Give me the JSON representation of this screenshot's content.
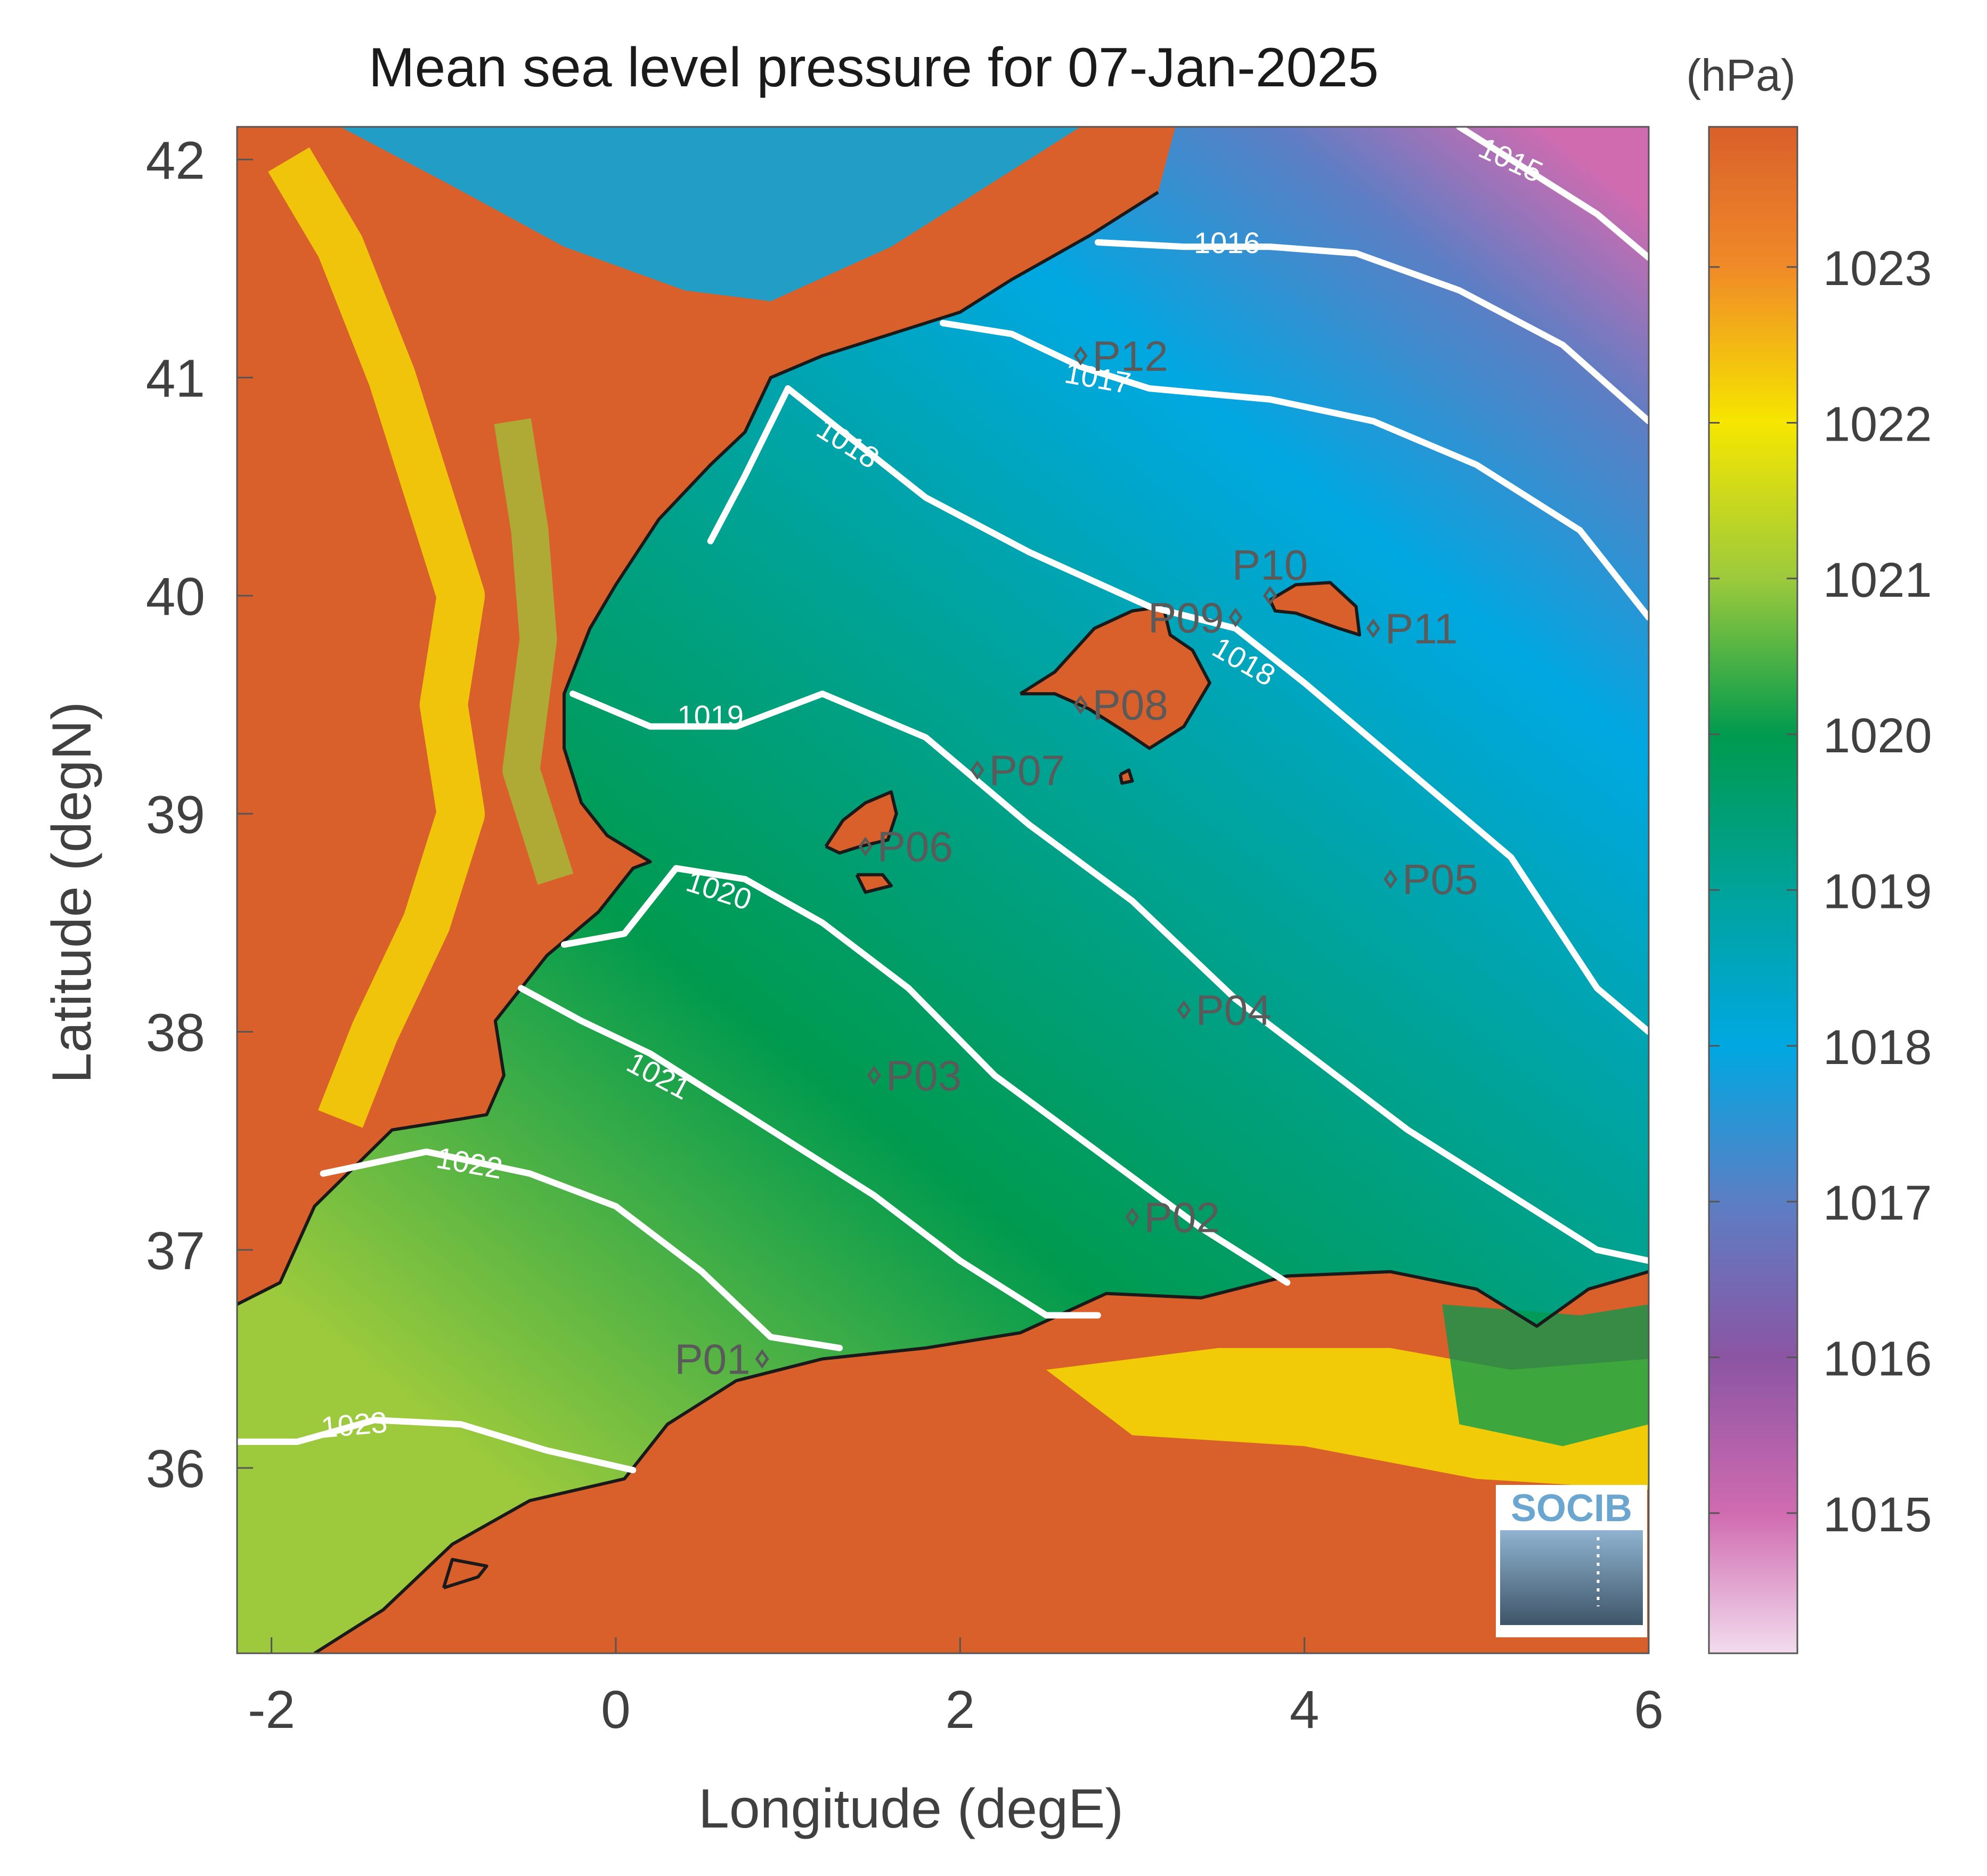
{
  "title": "Mean sea level pressure for 07-Jan-2025",
  "colorbar_unit": "(hPa)",
  "logo_text": "SOCIB",
  "chart_data": {
    "type": "heatmap",
    "title": "Mean sea level pressure for 07-Jan-2025",
    "xlabel": "Longitude (degE)",
    "ylabel": "Latitude (degN)",
    "xlim": [
      -2.2,
      6.0
    ],
    "ylim": [
      35.15,
      42.15
    ],
    "xticks": [
      -2,
      0,
      2,
      4,
      6
    ],
    "xtick_labels": [
      "-2",
      "0",
      "2",
      "4",
      "6"
    ],
    "yticks": [
      36,
      37,
      38,
      39,
      40,
      41,
      42
    ],
    "ytick_labels": [
      "36",
      "37",
      "38",
      "39",
      "40",
      "41",
      "42"
    ],
    "colorbar": {
      "label": "(hPa)",
      "range": [
        1014.1,
        1023.9
      ],
      "ticks": [
        1015,
        1016,
        1017,
        1018,
        1019,
        1020,
        1021,
        1022,
        1023
      ],
      "tick_labels": [
        "1015",
        "1016",
        "1017",
        "1018",
        "1019",
        "1020",
        "1021",
        "1022",
        "1023"
      ],
      "colors": [
        {
          "value": 1014.1,
          "color": "#f2dcee"
        },
        {
          "value": 1015.0,
          "color": "#d06bb0"
        },
        {
          "value": 1016.0,
          "color": "#8b55a3"
        },
        {
          "value": 1017.0,
          "color": "#5c7ec4"
        },
        {
          "value": 1018.0,
          "color": "#00a8e2"
        },
        {
          "value": 1019.0,
          "color": "#00a39a"
        },
        {
          "value": 1020.0,
          "color": "#009a4e"
        },
        {
          "value": 1021.0,
          "color": "#9cca3c"
        },
        {
          "value": 1022.0,
          "color": "#f6e600"
        },
        {
          "value": 1023.0,
          "color": "#f08a28"
        },
        {
          "value": 1023.9,
          "color": "#d9602a"
        }
      ]
    },
    "contours": [
      {
        "level": 1015,
        "label": "1015",
        "points": [
          [
            4.9,
            42.15
          ],
          [
            5.3,
            41.95
          ],
          [
            5.7,
            41.75
          ],
          [
            6.0,
            41.55
          ]
        ],
        "label_at": [
          5.2,
          42.0
        ],
        "label_angle": 25
      },
      {
        "level": 1016,
        "label": "1016",
        "points": [
          [
            2.8,
            41.62
          ],
          [
            3.3,
            41.6
          ],
          [
            3.8,
            41.6
          ],
          [
            4.3,
            41.57
          ],
          [
            4.9,
            41.4
          ],
          [
            5.5,
            41.15
          ],
          [
            6.0,
            40.8
          ]
        ],
        "label_at": [
          3.55,
          41.62
        ],
        "label_angle": 0
      },
      {
        "level": 1017,
        "label": "1017",
        "points": [
          [
            1.9,
            41.25
          ],
          [
            2.3,
            41.2
          ],
          [
            2.7,
            41.05
          ],
          [
            3.1,
            40.95
          ],
          [
            3.8,
            40.9
          ],
          [
            4.4,
            40.8
          ],
          [
            5.0,
            40.6
          ],
          [
            5.6,
            40.3
          ],
          [
            6.0,
            39.9
          ]
        ],
        "label_at": [
          2.8,
          41.0
        ],
        "label_angle": 10
      },
      {
        "level": 1018,
        "label": "1018",
        "points": [
          [
            1.0,
            40.95
          ],
          [
            1.4,
            40.7
          ],
          [
            1.8,
            40.45
          ],
          [
            2.4,
            40.2
          ],
          [
            3.1,
            39.95
          ],
          [
            3.6,
            39.85
          ],
          [
            4.0,
            39.6
          ],
          [
            4.6,
            39.2
          ],
          [
            5.2,
            38.8
          ],
          [
            5.7,
            38.2
          ],
          [
            6.0,
            38.0
          ]
        ],
        "label_at": [
          3.65,
          39.7
        ],
        "label_angle": 30
      },
      {
        "level": 1018,
        "label": "1018",
        "points": [
          [
            0.55,
            40.25
          ],
          [
            0.75,
            40.55
          ],
          [
            1.0,
            40.95
          ]
        ],
        "label_at": [
          1.35,
          40.7
        ],
        "label_angle": 32
      },
      {
        "level": 1019,
        "label": "1019",
        "points": [
          [
            -0.25,
            39.55
          ],
          [
            0.2,
            39.4
          ],
          [
            0.7,
            39.4
          ],
          [
            1.2,
            39.55
          ],
          [
            1.8,
            39.35
          ],
          [
            2.4,
            38.95
          ],
          [
            3.0,
            38.6
          ],
          [
            3.6,
            38.15
          ],
          [
            4.1,
            37.85
          ],
          [
            4.6,
            37.55
          ],
          [
            5.2,
            37.25
          ],
          [
            5.7,
            37.0
          ],
          [
            6.0,
            36.95
          ]
        ],
        "label_at": [
          0.55,
          39.45
        ],
        "label_angle": 0
      },
      {
        "level": 1020,
        "label": "1020",
        "points": [
          [
            -0.3,
            38.4
          ],
          [
            0.05,
            38.45
          ],
          [
            0.35,
            38.75
          ],
          [
            0.75,
            38.7
          ],
          [
            1.2,
            38.5
          ],
          [
            1.7,
            38.2
          ],
          [
            2.2,
            37.8
          ],
          [
            2.8,
            37.45
          ],
          [
            3.4,
            37.1
          ],
          [
            3.9,
            36.85
          ]
        ],
        "label_at": [
          0.6,
          38.65
        ],
        "label_angle": 18
      },
      {
        "level": 1021,
        "label": "1021",
        "points": [
          [
            -0.55,
            38.2
          ],
          [
            -0.2,
            38.05
          ],
          [
            0.2,
            37.9
          ],
          [
            0.6,
            37.7
          ],
          [
            1.0,
            37.5
          ],
          [
            1.5,
            37.25
          ],
          [
            2.0,
            36.95
          ],
          [
            2.5,
            36.7
          ],
          [
            2.8,
            36.7
          ]
        ],
        "label_at": [
          0.25,
          37.8
        ],
        "label_angle": 28
      },
      {
        "level": 1022,
        "label": "1022",
        "points": [
          [
            -1.7,
            37.35
          ],
          [
            -1.1,
            37.45
          ],
          [
            -0.5,
            37.35
          ],
          [
            0.0,
            37.2
          ],
          [
            0.5,
            36.9
          ],
          [
            0.9,
            36.6
          ],
          [
            1.3,
            36.55
          ]
        ],
        "label_at": [
          -0.85,
          37.4
        ],
        "label_angle": 10
      },
      {
        "level": 1023,
        "label": "1023",
        "points": [
          [
            -2.2,
            36.12
          ],
          [
            -1.85,
            36.12
          ],
          [
            -1.4,
            36.22
          ],
          [
            -0.9,
            36.2
          ],
          [
            -0.4,
            36.08
          ],
          [
            0.1,
            35.99
          ]
        ],
        "label_at": [
          -1.52,
          36.2
        ],
        "label_angle": -5
      }
    ],
    "stations": [
      {
        "name": "P01",
        "lon": 0.85,
        "lat": 36.5,
        "label_side": "left"
      },
      {
        "name": "P02",
        "lon": 3.0,
        "lat": 37.15,
        "label_side": "right"
      },
      {
        "name": "P03",
        "lon": 1.5,
        "lat": 37.8,
        "label_side": "right"
      },
      {
        "name": "P04",
        "lon": 3.3,
        "lat": 38.1,
        "label_side": "right"
      },
      {
        "name": "P05",
        "lon": 4.5,
        "lat": 38.7,
        "label_side": "right"
      },
      {
        "name": "P06",
        "lon": 1.45,
        "lat": 38.85,
        "label_side": "right"
      },
      {
        "name": "P07",
        "lon": 2.1,
        "lat": 39.2,
        "label_side": "right"
      },
      {
        "name": "P08",
        "lon": 2.7,
        "lat": 39.5,
        "label_side": "right"
      },
      {
        "name": "P09",
        "lon": 3.6,
        "lat": 39.9,
        "label_side": "left"
      },
      {
        "name": "P10",
        "lon": 3.8,
        "lat": 40.0,
        "label_side": "top"
      },
      {
        "name": "P11",
        "lon": 4.4,
        "lat": 39.85,
        "label_side": "right"
      },
      {
        "name": "P12",
        "lon": 2.7,
        "lat": 41.1,
        "label_side": "right"
      }
    ]
  }
}
